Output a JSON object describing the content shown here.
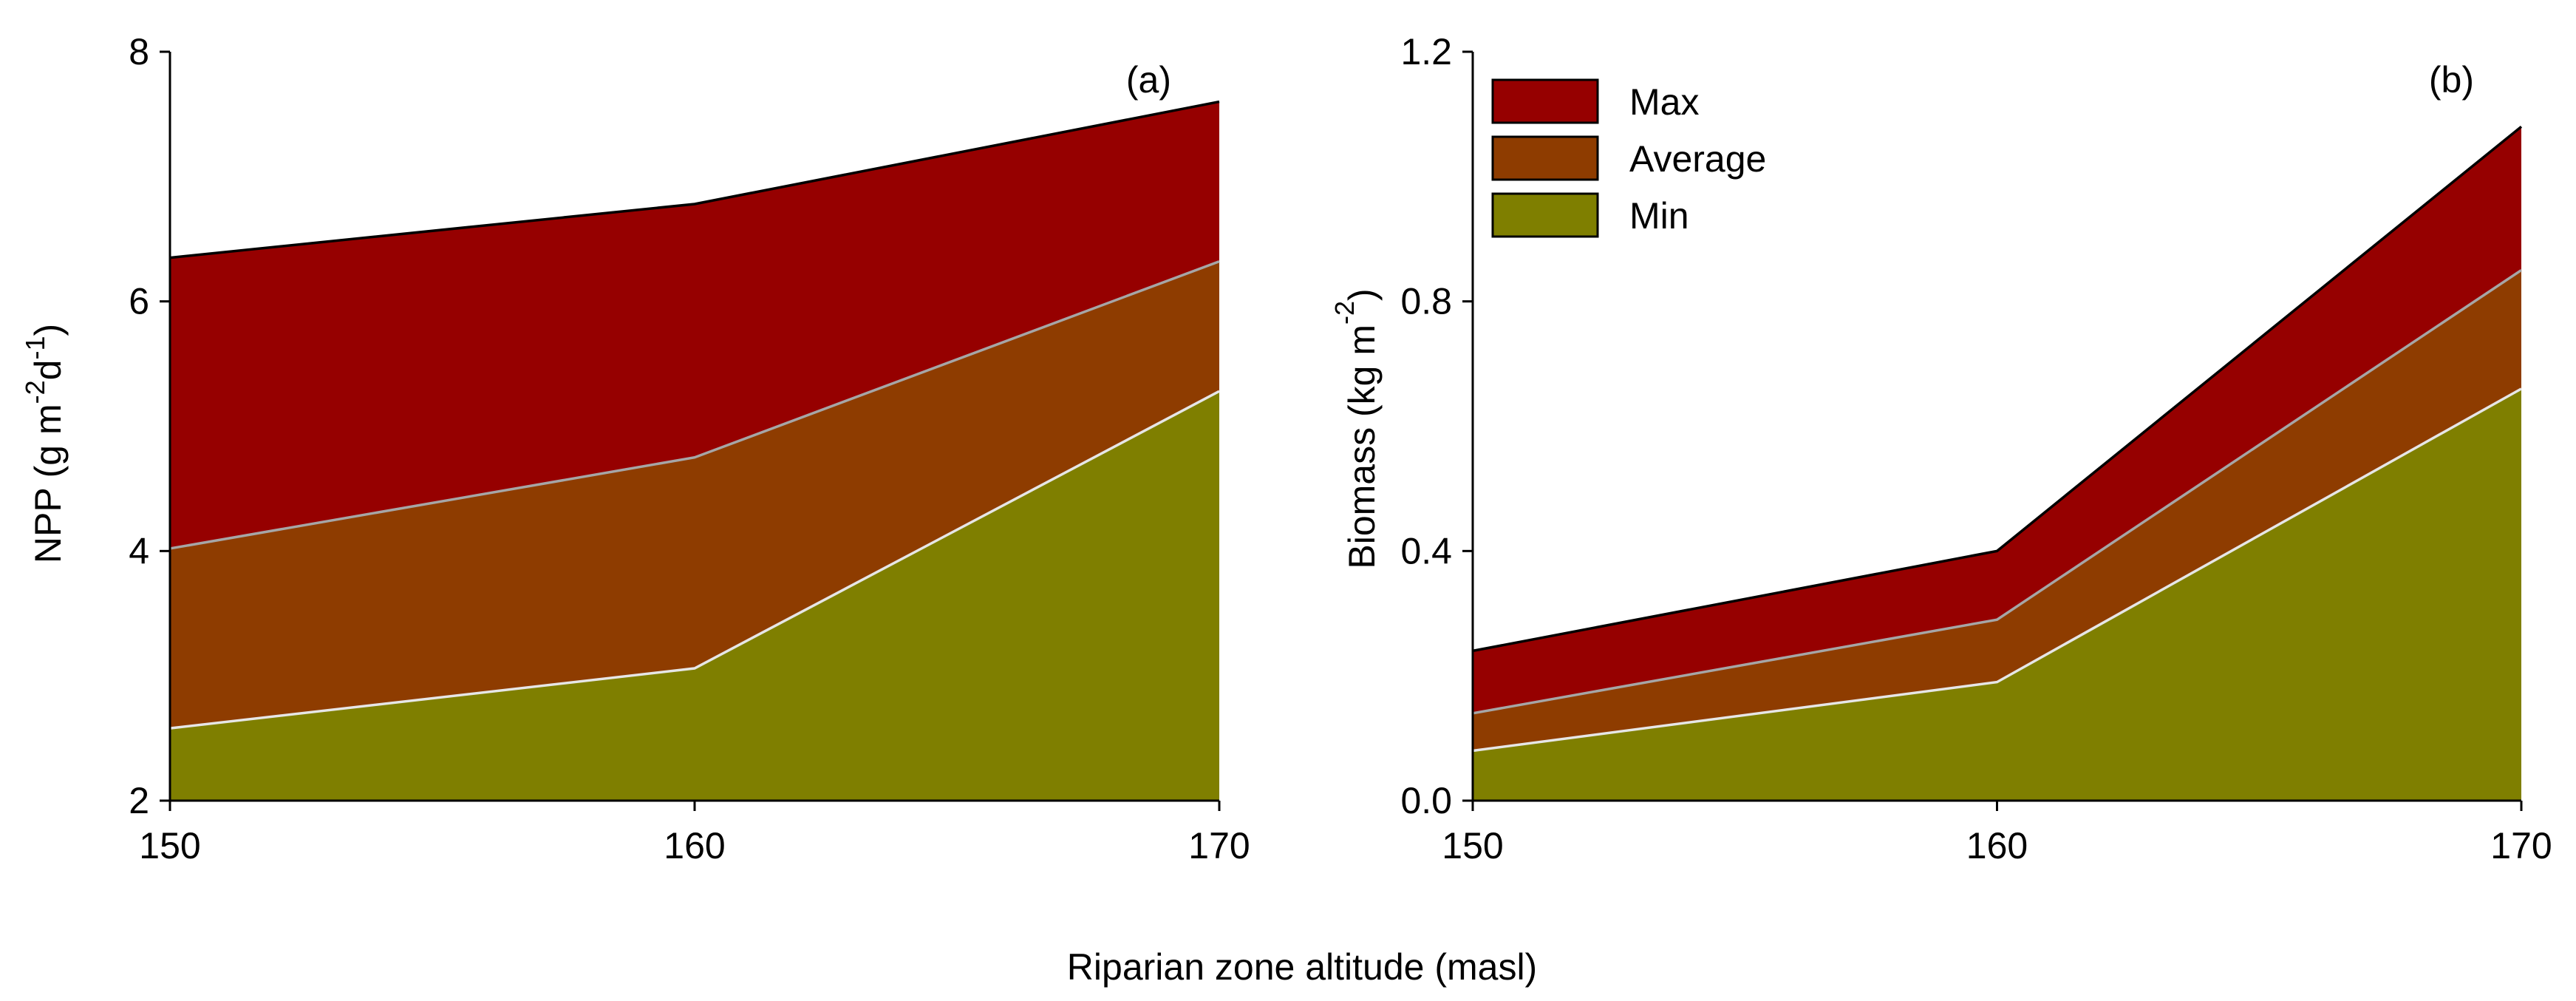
{
  "xlabel_shared": "Riparian zone altitude (masl)",
  "legend": [
    {
      "name": "Max",
      "color": "#960000"
    },
    {
      "name": "Average",
      "color": "#8e3c00"
    },
    {
      "name": "Min",
      "color": "#7f7f00"
    }
  ],
  "chart_data": [
    {
      "type": "area",
      "panel": "(a)",
      "ylabel": "NPP (g m-2 d-1)",
      "ylabel_parts": {
        "main": "NPP (g m",
        "sup1": "-2",
        "mid": "d",
        "sup2": "-1",
        "close": ")"
      },
      "xlabel": "Riparian zone altitude (masl)",
      "x": [
        150,
        160,
        170
      ],
      "xlim": [
        150,
        170
      ],
      "xticks": [
        "150",
        "160",
        "170"
      ],
      "ylim": [
        2,
        8
      ],
      "yticks": [
        "2",
        "4",
        "6",
        "8"
      ],
      "ytick_values": [
        2,
        4,
        6,
        8
      ],
      "series": [
        {
          "name": "Max",
          "values": [
            6.35,
            6.78,
            7.6
          ],
          "color": "#960000",
          "edge": "#000000"
        },
        {
          "name": "Average",
          "values": [
            4.02,
            4.75,
            6.32
          ],
          "color": "#8e3c00",
          "edge": "#a6a6a6"
        },
        {
          "name": "Min",
          "values": [
            2.58,
            3.06,
            5.28
          ],
          "color": "#7f7f00",
          "edge": "#e6e6e6"
        }
      ]
    },
    {
      "type": "area",
      "panel": "(b)",
      "ylabel": "Biomass (kg m-2)",
      "ylabel_parts": {
        "main": "Biomass (kg m",
        "sup1": "-2",
        "close": ")"
      },
      "xlabel": "Riparian zone altitude (masl)",
      "x": [
        150,
        160,
        170
      ],
      "xlim": [
        150,
        170
      ],
      "xticks": [
        "150",
        "160",
        "170"
      ],
      "ylim": [
        0,
        1.2
      ],
      "yticks": [
        "0.0",
        "0.4",
        "0.8",
        "1.2"
      ],
      "ytick_values": [
        0,
        0.4,
        0.8,
        1.2
      ],
      "series": [
        {
          "name": "Max",
          "values": [
            0.24,
            0.4,
            1.08
          ],
          "color": "#960000",
          "edge": "#000000"
        },
        {
          "name": "Average",
          "values": [
            0.14,
            0.29,
            0.85
          ],
          "color": "#8e3c00",
          "edge": "#a6a6a6"
        },
        {
          "name": "Min",
          "values": [
            0.08,
            0.19,
            0.66
          ],
          "color": "#7f7f00",
          "edge": "#e6e6e6"
        }
      ]
    }
  ]
}
